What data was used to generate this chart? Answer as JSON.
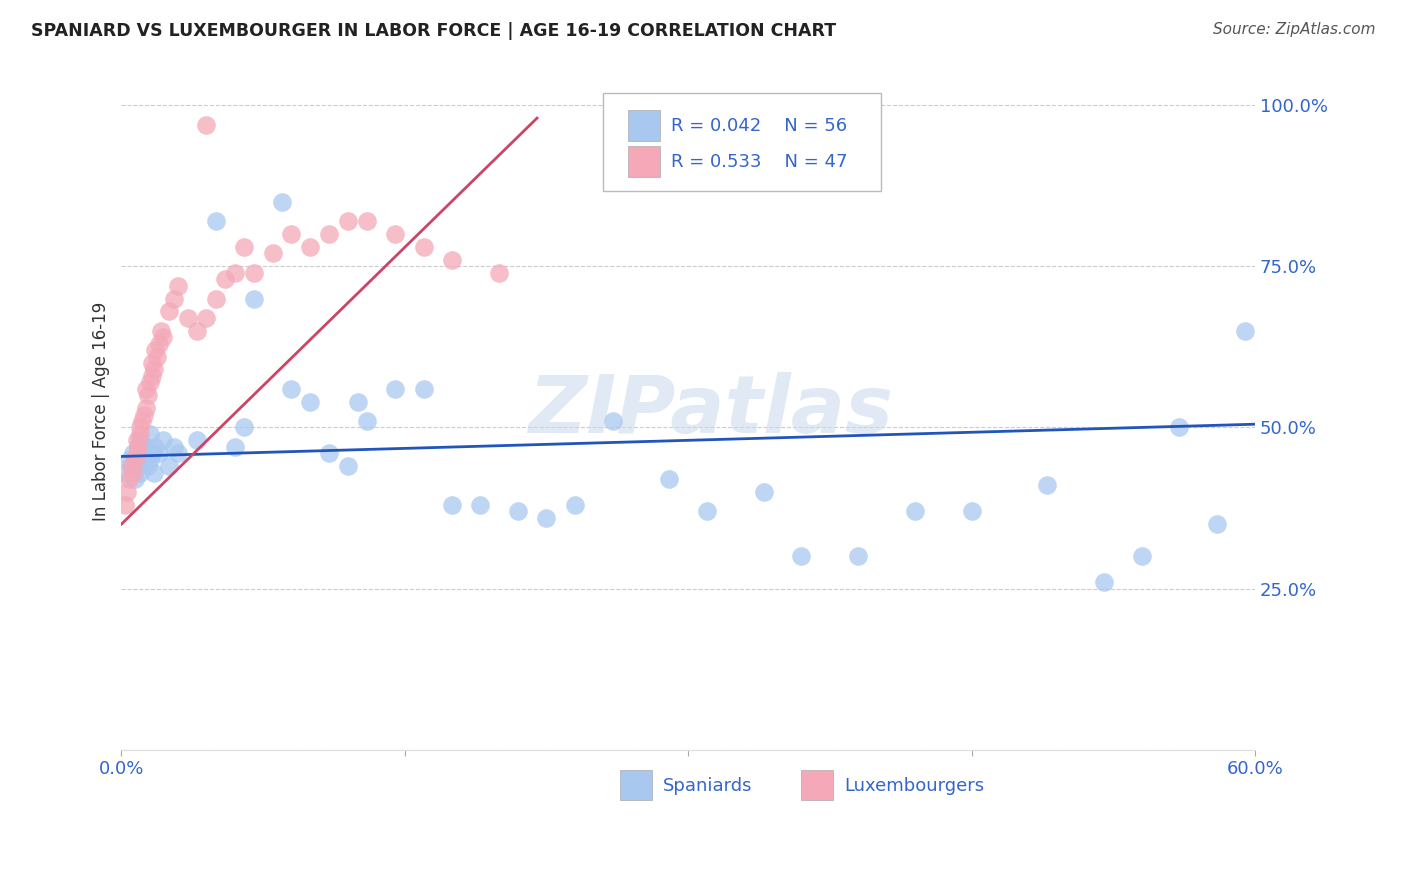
{
  "title": "SPANIARD VS LUXEMBOURGER IN LABOR FORCE | AGE 16-19 CORRELATION CHART",
  "source": "Source: ZipAtlas.com",
  "ylabel": "In Labor Force | Age 16-19",
  "watermark": "ZIPatlas",
  "blue_label": "Spaniards",
  "pink_label": "Luxembourgers",
  "blue_R": 0.042,
  "blue_N": 56,
  "pink_R": 0.533,
  "pink_N": 47,
  "blue_color": "#A8C8F0",
  "pink_color": "#F4A8B8",
  "blue_line_color": "#2255BB",
  "pink_line_color": "#CC4466",
  "xlim": [
    0.0,
    0.6
  ],
  "ylim": [
    0.0,
    1.05
  ],
  "background_color": "#FFFFFF",
  "grid_color": "#CCCCCC",
  "blue_x": [
    0.002,
    0.004,
    0.005,
    0.006,
    0.007,
    0.008,
    0.009,
    0.01,
    0.01,
    0.011,
    0.012,
    0.013,
    0.014,
    0.015,
    0.015,
    0.016,
    0.017,
    0.018,
    0.02,
    0.022,
    0.025,
    0.028,
    0.03,
    0.04,
    0.05,
    0.06,
    0.065,
    0.07,
    0.085,
    0.09,
    0.1,
    0.11,
    0.12,
    0.125,
    0.13,
    0.145,
    0.16,
    0.175,
    0.19,
    0.21,
    0.225,
    0.24,
    0.26,
    0.29,
    0.31,
    0.34,
    0.36,
    0.39,
    0.42,
    0.45,
    0.49,
    0.52,
    0.54,
    0.56,
    0.58,
    0.595
  ],
  "blue_y": [
    0.43,
    0.45,
    0.44,
    0.46,
    0.42,
    0.44,
    0.47,
    0.43,
    0.48,
    0.45,
    0.46,
    0.47,
    0.44,
    0.45,
    0.49,
    0.46,
    0.43,
    0.47,
    0.46,
    0.48,
    0.44,
    0.47,
    0.46,
    0.48,
    0.82,
    0.47,
    0.5,
    0.7,
    0.85,
    0.56,
    0.54,
    0.46,
    0.44,
    0.54,
    0.51,
    0.56,
    0.56,
    0.38,
    0.38,
    0.37,
    0.36,
    0.38,
    0.51,
    0.42,
    0.37,
    0.4,
    0.3,
    0.3,
    0.37,
    0.37,
    0.41,
    0.26,
    0.3,
    0.5,
    0.35,
    0.65
  ],
  "pink_x": [
    0.002,
    0.003,
    0.004,
    0.005,
    0.006,
    0.007,
    0.008,
    0.008,
    0.009,
    0.01,
    0.01,
    0.011,
    0.012,
    0.013,
    0.013,
    0.014,
    0.015,
    0.016,
    0.016,
    0.017,
    0.018,
    0.019,
    0.02,
    0.021,
    0.022,
    0.025,
    0.028,
    0.03,
    0.035,
    0.04,
    0.045,
    0.05,
    0.055,
    0.06,
    0.065,
    0.07,
    0.08,
    0.09,
    0.1,
    0.11,
    0.12,
    0.13,
    0.145,
    0.16,
    0.175,
    0.2,
    0.045
  ],
  "pink_y": [
    0.38,
    0.4,
    0.42,
    0.44,
    0.43,
    0.45,
    0.46,
    0.48,
    0.47,
    0.49,
    0.5,
    0.51,
    0.52,
    0.53,
    0.56,
    0.55,
    0.57,
    0.58,
    0.6,
    0.59,
    0.62,
    0.61,
    0.63,
    0.65,
    0.64,
    0.68,
    0.7,
    0.72,
    0.67,
    0.65,
    0.67,
    0.7,
    0.73,
    0.74,
    0.78,
    0.74,
    0.77,
    0.8,
    0.78,
    0.8,
    0.82,
    0.82,
    0.8,
    0.78,
    0.76,
    0.74,
    0.97
  ],
  "blue_line_x": [
    0.0,
    0.6
  ],
  "blue_line_y": [
    0.455,
    0.505
  ],
  "pink_line_x": [
    0.0,
    0.22
  ],
  "pink_line_y": [
    0.35,
    0.98
  ]
}
